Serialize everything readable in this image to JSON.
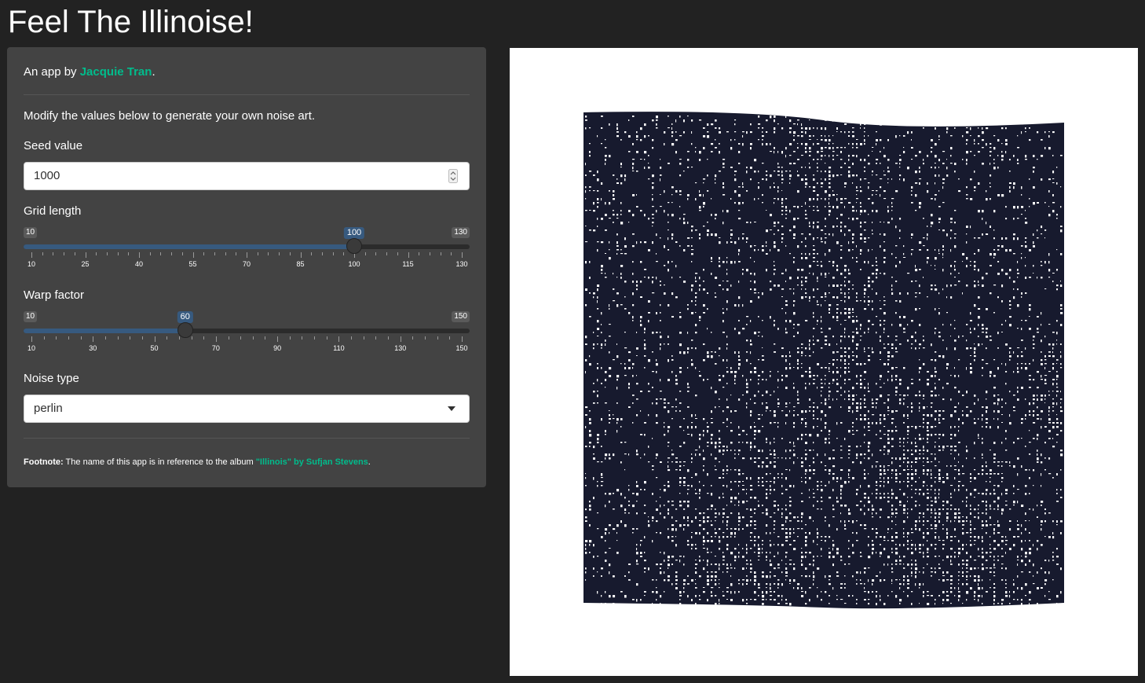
{
  "page": {
    "title": "Feel The Illinoise!"
  },
  "sidebar": {
    "byline_prefix": "An app by ",
    "byline_link": "Jacquie Tran",
    "byline_suffix": ".",
    "intro": "Modify the values below to generate your own noise art.",
    "seed": {
      "label": "Seed value",
      "value": "1000"
    },
    "grid_length": {
      "label": "Grid length",
      "min": 10,
      "max": 130,
      "value": 100,
      "min_label": "10",
      "max_label": "130",
      "value_label": "100",
      "ticks": [
        "10",
        "25",
        "40",
        "55",
        "70",
        "85",
        "100",
        "115",
        "130"
      ]
    },
    "warp_factor": {
      "label": "Warp factor",
      "min": 10,
      "max": 150,
      "value": 60,
      "min_label": "10",
      "max_label": "150",
      "value_label": "60",
      "ticks": [
        "10",
        "30",
        "50",
        "70",
        "90",
        "110",
        "130",
        "150"
      ]
    },
    "noise_type": {
      "label": "Noise type",
      "value": "perlin"
    },
    "footnote": {
      "bold": "Footnote:",
      "text": " The name of this app is in reference to the album ",
      "link": "\"Illinois\" by Sufjan Stevens",
      "suffix": "."
    }
  },
  "art": {
    "fg_color": "#171a2e",
    "bg_color": "#ffffff"
  },
  "colors": {
    "accent": "#00bc8c",
    "slider_fill": "#375a7f",
    "panel": "#434343",
    "background": "#222222"
  }
}
